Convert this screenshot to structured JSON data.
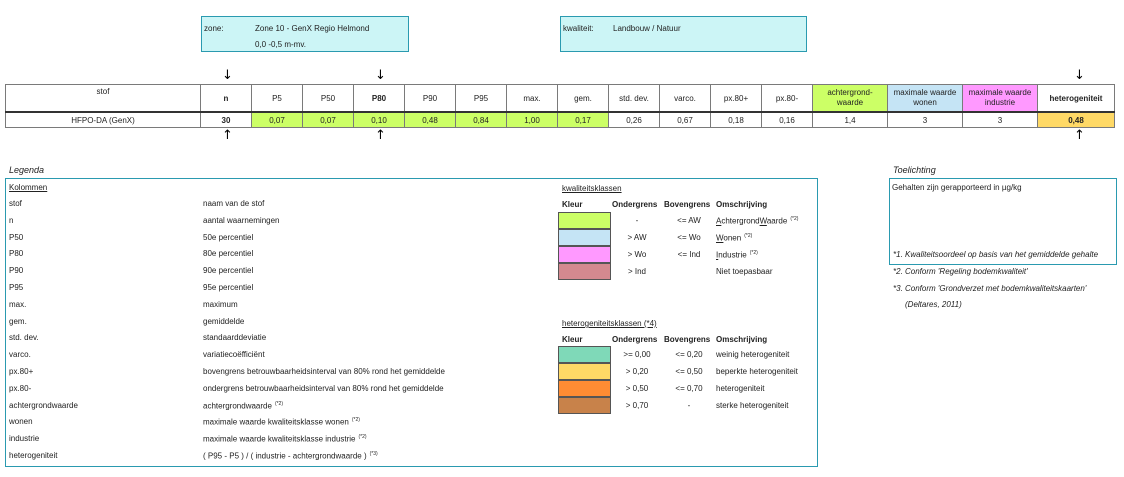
{
  "zone": {
    "label": "zone:",
    "name": "Zone 10 - GenX Regio Helmond",
    "depth": "0,0 -0,5 m-mv."
  },
  "quality": {
    "label": "kwaliteit:",
    "value": "Landbouw / Natuur"
  },
  "arrows": {
    "down": "↓",
    "up": "↑"
  },
  "table": {
    "headers": [
      "stof",
      "n",
      "P5",
      "P50",
      "P80",
      "P90",
      "P95",
      "max.",
      "gem.",
      "std. dev.",
      "varco.",
      "px.80+",
      "px.80-",
      "achtergrond-waarde",
      "maximale waarde wonen",
      "maximale waarde industrie",
      "heterogeniteit"
    ],
    "row": [
      "HFPO-DA (GenX)",
      "30",
      "0,07",
      "0,07",
      "0,10",
      "0,48",
      "0,84",
      "1,00",
      "0,17",
      "0,26",
      "0,67",
      "0,18",
      "0,16",
      "1,4",
      "3",
      "3",
      "0,48"
    ]
  },
  "colors": {
    "green": "#ccff66",
    "blue": "#c5e4f5",
    "pink": "#ff99ff",
    "rose": "#d4898f",
    "teal": "#7fd9b8",
    "yellow": "#ffd966",
    "orange": "#ff8c33",
    "brown": "#c8824a",
    "box": "#ccf5f6"
  },
  "legend": {
    "title": "Legenda",
    "columns_title": "Kolommen",
    "items": [
      {
        "key": "stof",
        "desc": "naam van de stof"
      },
      {
        "key": "n",
        "desc": "aantal waarnemingen"
      },
      {
        "key": "P50",
        "desc": "50e percentiel"
      },
      {
        "key": "P80",
        "desc": "80e percentiel"
      },
      {
        "key": "P90",
        "desc": "90e percentiel"
      },
      {
        "key": "P95",
        "desc": "95e percentiel"
      },
      {
        "key": "max.",
        "desc": "maximum"
      },
      {
        "key": "gem.",
        "desc": "gemiddelde"
      },
      {
        "key": "std. dev.",
        "desc": "standaarddeviatie"
      },
      {
        "key": "varco.",
        "desc": "variatiecoëfficiënt"
      },
      {
        "key": "px.80+",
        "desc": "bovengrens betrouwbaarheidsinterval van 80% rond het gemiddelde"
      },
      {
        "key": "px.80-",
        "desc": "ondergrens betrouwbaarheidsinterval van 80% rond het gemiddelde"
      },
      {
        "key": "achtergrondwaarde",
        "desc": "achtergrondwaarde",
        "sup": "(*2)"
      },
      {
        "key": "wonen",
        "desc": "maximale waarde kwaliteitsklasse wonen",
        "sup": "(*2)"
      },
      {
        "key": "industrie",
        "desc": "maximale waarde kwaliteitsklasse industrie",
        "sup": "(*2)"
      },
      {
        "key": "heterogeniteit",
        "desc": "( P95 - P5 ) / ( industrie - achtergrondwaarde )",
        "sup": "(*3)"
      }
    ],
    "quality_classes": {
      "title": "kwaliteitsklassen",
      "headers": [
        "Kleur",
        "Ondergrens",
        "Bovengrens",
        "Omschrijving"
      ],
      "rows": [
        {
          "lower": "-",
          "upper": "<= AW",
          "desc_pre": "A",
          "desc_mid": "chtergrond",
          "desc_u": "W",
          "desc_post": "aarde",
          "sup": "(*2)"
        },
        {
          "lower": "> AW",
          "upper": "<= Wo",
          "desc_pre": "W",
          "desc_mid": "onen",
          "desc_u": "",
          "desc_post": "",
          "sup": "(*2)"
        },
        {
          "lower": "> Wo",
          "upper": "<= Ind",
          "desc_pre": "I",
          "desc_mid": "ndustrie",
          "desc_u": "",
          "desc_post": "",
          "sup": "(*2)"
        },
        {
          "lower": "> Ind",
          "upper": "",
          "desc_pre": "",
          "desc_mid": "Niet toepasbaar",
          "desc_u": "",
          "desc_post": "",
          "sup": ""
        }
      ]
    },
    "heterogeneity_classes": {
      "title": "heterogeniteitsklassen (*4)",
      "headers": [
        "Kleur",
        "Ondergrens",
        "Bovengrens",
        "Omschrijving"
      ],
      "rows": [
        {
          "lower": ">= 0,00",
          "upper": "<= 0,20",
          "desc": "weinig heterogeniteit"
        },
        {
          "lower": "> 0,20",
          "upper": "<= 0,50",
          "desc": "beperkte heterogeniteit"
        },
        {
          "lower": "> 0,50",
          "upper": "<= 0,70",
          "desc": "heterogeniteit"
        },
        {
          "lower": "> 0,70",
          "upper": "-",
          "desc": "sterke heterogeniteit"
        }
      ]
    }
  },
  "notes": {
    "title": "Toelichting",
    "units": "Gehalten zijn gerapporteerd in µg/kg",
    "lines": [
      "*1. Kwaliteitsoordeel op basis van het gemiddelde  gehalte",
      "*2. Conform 'Regeling bodemkwaliteit'",
      "*3. Conform 'Grondverzet met bodemkwaliteitskaarten'",
      "(Deltares, 2011)"
    ]
  }
}
